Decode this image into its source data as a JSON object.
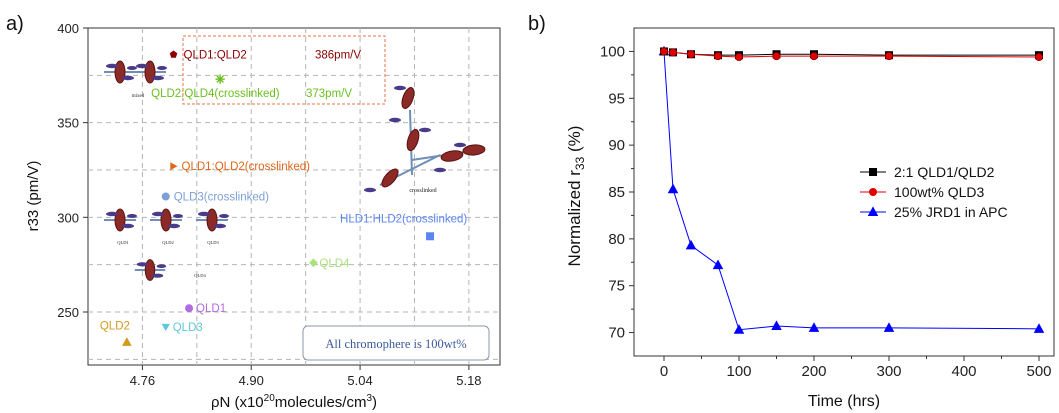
{
  "panels": {
    "a_label": "a)",
    "b_label": "b)"
  },
  "chart_data": [
    {
      "type": "scatter",
      "panel": "a",
      "xlabel": "ρN (x10^20 molecules/cm^3)",
      "xlabel_parts": {
        "pre": "ρN (x10",
        "sup": "20",
        "post": "molecules/cm",
        "sup2": "3",
        "end": ")"
      },
      "ylabel": "r33 (pm/V)",
      "xlim": [
        4.69,
        5.22
      ],
      "ylim": [
        222,
        400
      ],
      "xticks": [
        "4.76",
        "4.90",
        "5.04",
        "5.18"
      ],
      "xtick_values": [
        4.76,
        4.9,
        5.04,
        5.18
      ],
      "yticks": [
        "250",
        "300",
        "350",
        "400"
      ],
      "ytick_values": [
        250,
        300,
        350,
        400
      ],
      "grid": true,
      "points": [
        {
          "label": "QLD1:QLD2",
          "x": 4.8,
          "y": 386,
          "marker": "pentagon",
          "color": "#8b0000"
        },
        {
          "label": "QLD2:QLD4(crosslinked)",
          "x": 4.86,
          "y": 373,
          "marker": "star",
          "color": "#6abf1e"
        },
        {
          "label": "QLD1:QLD2(crosslinked)",
          "x": 4.8,
          "y": 327,
          "marker": "triangle-right",
          "color": "#e0661a"
        },
        {
          "label": "QLD3(crosslinked)",
          "x": 4.79,
          "y": 311,
          "marker": "circle",
          "color": "#7c9fd6"
        },
        {
          "label": "HLD1:HLD2(crosslinked)",
          "x": 5.13,
          "y": 290,
          "marker": "square",
          "color": "#5b86f0"
        },
        {
          "label": "QLD4",
          "x": 4.98,
          "y": 276,
          "marker": "diamond",
          "color": "#a8e27a"
        },
        {
          "label": "QLD1",
          "x": 4.82,
          "y": 252,
          "marker": "circle",
          "color": "#b36be0"
        },
        {
          "label": "QLD3",
          "x": 4.79,
          "y": 242,
          "marker": "triangle-down",
          "color": "#5fc8d8"
        },
        {
          "label": "QLD2",
          "x": 4.74,
          "y": 234,
          "marker": "triangle-up",
          "color": "#d09a1e"
        }
      ],
      "highlight_values": {
        "QLD1:QLD2": "386pm/V",
        "QLD2:QLD4(crosslinked)": "373pm/V"
      },
      "annotation_box": "All chromophere is 100wt%",
      "diagram_labels": {
        "mixed": "mixed",
        "crosslinked": "crosslinked",
        "qld1": "QLD1",
        "qld2": "QLD2",
        "qld3": "QLD3",
        "qld4": "QLD4"
      }
    },
    {
      "type": "line",
      "panel": "b",
      "xlabel": "Time (hrs)",
      "ylabel": "Normalized r33 (%)",
      "ylabel_parts": {
        "pre": "Normalized r",
        "sub": "33",
        "post": " (%)"
      },
      "xlim": [
        -40,
        520
      ],
      "ylim": [
        67.5,
        102.5
      ],
      "xticks": [
        "0",
        "100",
        "200",
        "300",
        "400",
        "500"
      ],
      "xtick_values": [
        0,
        100,
        200,
        300,
        400,
        500
      ],
      "yticks": [
        "70",
        "75",
        "80",
        "85",
        "90",
        "95",
        "100"
      ],
      "ytick_values": [
        70,
        75,
        80,
        85,
        90,
        95,
        100
      ],
      "grid": false,
      "legend_position": "center-right",
      "series": [
        {
          "name": "2:1 QLD1/QLD2",
          "color": "#000000",
          "marker": "square",
          "x": [
            0,
            12,
            36,
            72,
            100,
            150,
            200,
            300,
            500
          ],
          "y": [
            100,
            99.9,
            99.7,
            99.6,
            99.6,
            99.7,
            99.7,
            99.6,
            99.6
          ]
        },
        {
          "name": "100wt% QLD3",
          "color": "#e00000",
          "marker": "circle",
          "x": [
            0,
            12,
            36,
            72,
            100,
            150,
            200,
            300,
            500
          ],
          "y": [
            100,
            99.9,
            99.7,
            99.5,
            99.4,
            99.5,
            99.5,
            99.5,
            99.4
          ]
        },
        {
          "name": "25% JRD1 in APC",
          "color": "#0000ff",
          "marker": "triangle-up",
          "x": [
            0,
            12,
            36,
            72,
            100,
            150,
            200,
            300,
            500
          ],
          "y": [
            100,
            85.3,
            79.3,
            77.2,
            70.3,
            70.7,
            70.5,
            70.5,
            70.4
          ]
        }
      ]
    }
  ]
}
